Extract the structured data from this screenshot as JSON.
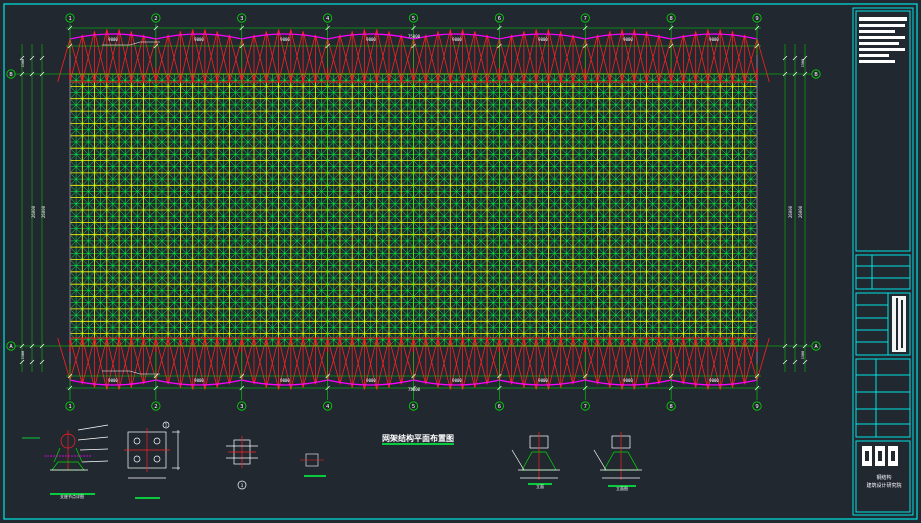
{
  "drawing": {
    "title": "网架结构平面布置图",
    "column_axes": [
      "1",
      "2",
      "3",
      "4",
      "5",
      "6",
      "7",
      "8",
      "9"
    ],
    "row_axes": [
      "A",
      "B"
    ],
    "overall_length": "75000",
    "bay_dimensions": [
      "9000",
      "9000",
      "9000",
      "9000",
      "9000",
      "9000",
      "9000",
      "9000"
    ],
    "overall_width": "26000",
    "side_dims": [
      "1500",
      "1500"
    ],
    "details": {
      "support_detail": "支座节点详图",
      "detail_1_marker": "1",
      "section_a": "立面",
      "section_b": "立面图"
    }
  },
  "title_block": {
    "logo_text": "GGS",
    "company_line1": "钢结构",
    "company_line2": "建筑设计研究院"
  },
  "colors": {
    "background": "#212830",
    "frame": "#00e5e5",
    "axis": "#00dd00",
    "mesh_yellow": "#ffff00",
    "mesh_green": "#00ff40",
    "edge_red": "#ff2020",
    "edge_magenta": "#ff00ff",
    "text": "#ffffff"
  }
}
